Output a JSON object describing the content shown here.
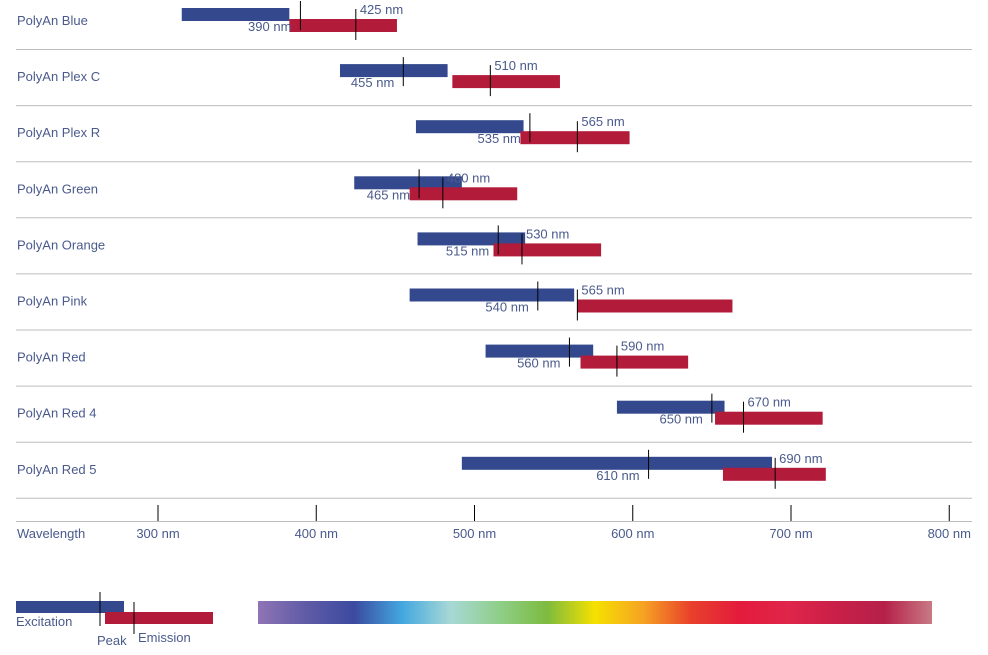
{
  "chart_data": {
    "type": "range-bar",
    "xlabel": "Wavelength",
    "xlim": [
      200,
      800
    ],
    "xticks": [
      300,
      400,
      500,
      600,
      700,
      800
    ],
    "xtick_labels": [
      "300 nm",
      "400 nm",
      "500 nm",
      "600 nm",
      "700 nm",
      "800 nm"
    ],
    "excitation_color": "#34498d",
    "emission_color": "#b31b3b",
    "dyes": [
      {
        "name": "PolyAn Blue",
        "ex_range": [
          315,
          383
        ],
        "ex_peak": 390,
        "ex_label": "390 nm",
        "em_range": [
          383,
          451
        ],
        "em_peak": 425,
        "em_label": "425 nm"
      },
      {
        "name": "PolyAn Plex C",
        "ex_range": [
          415,
          483
        ],
        "ex_peak": 455,
        "ex_label": "455 nm",
        "em_range": [
          486,
          554
        ],
        "em_peak": 510,
        "em_label": "510 nm"
      },
      {
        "name": "PolyAn Plex R",
        "ex_range": [
          463,
          531
        ],
        "ex_peak": 535,
        "ex_label": "535 nm",
        "em_range": [
          529,
          598
        ],
        "em_peak": 565,
        "em_label": "565 nm"
      },
      {
        "name": "PolyAn Green",
        "ex_range": [
          424,
          492
        ],
        "ex_peak": 465,
        "ex_label": "465 nm",
        "em_range": [
          459,
          527
        ],
        "em_peak": 480,
        "em_label": "480 nm"
      },
      {
        "name": "PolyAn Orange",
        "ex_range": [
          464,
          532
        ],
        "ex_peak": 515,
        "ex_label": "515 nm",
        "em_range": [
          512,
          580
        ],
        "em_peak": 530,
        "em_label": "530 nm"
      },
      {
        "name": "PolyAn Pink",
        "ex_range": [
          459,
          563
        ],
        "ex_peak": 540,
        "ex_label": "540 nm",
        "em_range": [
          565,
          663
        ],
        "em_peak": 565,
        "em_label": "565 nm"
      },
      {
        "name": "PolyAn Red",
        "ex_range": [
          507,
          575
        ],
        "ex_peak": 560,
        "ex_label": "560 nm",
        "em_range": [
          567,
          635
        ],
        "em_peak": 590,
        "em_label": "590 nm"
      },
      {
        "name": "PolyAn Red 4",
        "ex_range": [
          590,
          658
        ],
        "ex_peak": 650,
        "ex_label": "650 nm",
        "em_range": [
          652,
          720
        ],
        "em_peak": 670,
        "em_label": "670 nm"
      },
      {
        "name": "PolyAn Red 5",
        "ex_range": [
          492,
          688
        ],
        "ex_peak": 610,
        "ex_label": "610 nm",
        "em_range": [
          657,
          722
        ],
        "em_peak": 690,
        "em_label": "690 nm"
      }
    ],
    "legend": {
      "excitation": "Excitation",
      "peak": "Peak",
      "emission": "Emission"
    },
    "spectrum_colors": [
      "#8f74b5",
      "#5f5ba6",
      "#3b4aa0",
      "#43a8df",
      "#a8d8d6",
      "#8fcf8a",
      "#7dbb3f",
      "#f5e100",
      "#f6a323",
      "#e8402b",
      "#e31b3c",
      "#e0254a",
      "#c91f48",
      "#b52049",
      "#c77a83"
    ]
  }
}
